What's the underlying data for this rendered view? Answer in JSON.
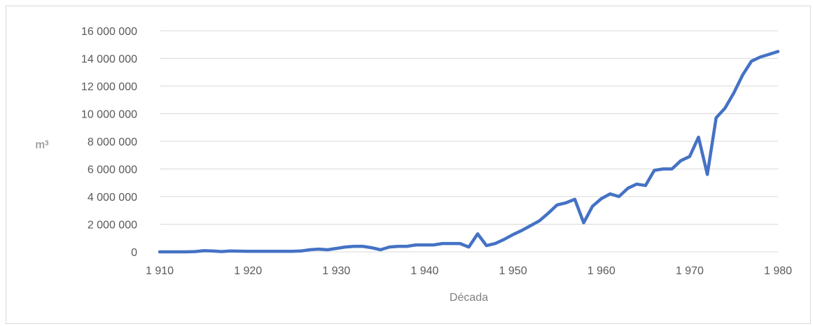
{
  "chart_data": {
    "type": "line",
    "title": "",
    "xlabel": "Década",
    "ylabel": "m³",
    "xlim": [
      1910,
      1980
    ],
    "ylim": [
      0,
      16000000
    ],
    "x_ticks": [
      1910,
      1920,
      1930,
      1940,
      1950,
      1960,
      1970,
      1980
    ],
    "x_tick_labels": [
      "1 910",
      "1 920",
      "1 930",
      "1 940",
      "1 950",
      "1 960",
      "1 970",
      "1 980"
    ],
    "y_ticks": [
      0,
      2000000,
      4000000,
      6000000,
      8000000,
      10000000,
      12000000,
      14000000,
      16000000
    ],
    "y_tick_labels": [
      "0",
      "2 000 000",
      "4 000 000",
      "6 000 000",
      "8 000 000",
      "10 000 000",
      "12 000 000",
      "14 000 000",
      "16 000 000"
    ],
    "grid": true,
    "legend": "none",
    "series": [
      {
        "color": "#4472c4",
        "x": [
          1910,
          1911,
          1912,
          1913,
          1914,
          1915,
          1916,
          1917,
          1918,
          1919,
          1920,
          1921,
          1922,
          1923,
          1924,
          1925,
          1926,
          1927,
          1928,
          1929,
          1930,
          1931,
          1932,
          1933,
          1934,
          1935,
          1936,
          1937,
          1938,
          1939,
          1940,
          1941,
          1942,
          1943,
          1944,
          1945,
          1946,
          1947,
          1948,
          1949,
          1950,
          1951,
          1952,
          1953,
          1954,
          1955,
          1956,
          1957,
          1958,
          1959,
          1960,
          1961,
          1962,
          1963,
          1964,
          1965,
          1966,
          1967,
          1968,
          1969,
          1970,
          1971,
          1972,
          1973,
          1974,
          1975,
          1976,
          1977,
          1978,
          1979,
          1980
        ],
        "y": [
          0,
          0,
          0,
          0,
          20000,
          80000,
          60000,
          20000,
          60000,
          50000,
          40000,
          40000,
          40000,
          40000,
          40000,
          40000,
          60000,
          150000,
          200000,
          150000,
          250000,
          350000,
          400000,
          400000,
          300000,
          150000,
          350000,
          400000,
          400000,
          500000,
          500000,
          500000,
          600000,
          600000,
          600000,
          350000,
          1300000,
          450000,
          600000,
          900000,
          1250000,
          1550000,
          1900000,
          2250000,
          2800000,
          3400000,
          3550000,
          3800000,
          2100000,
          3300000,
          3850000,
          4200000,
          4000000,
          4600000,
          4900000,
          4800000,
          5900000,
          6000000,
          6000000,
          6600000,
          6900000,
          8300000,
          5600000,
          9700000,
          10400000,
          11500000,
          12800000,
          13800000,
          14100000,
          14300000,
          14500000
        ]
      }
    ]
  }
}
